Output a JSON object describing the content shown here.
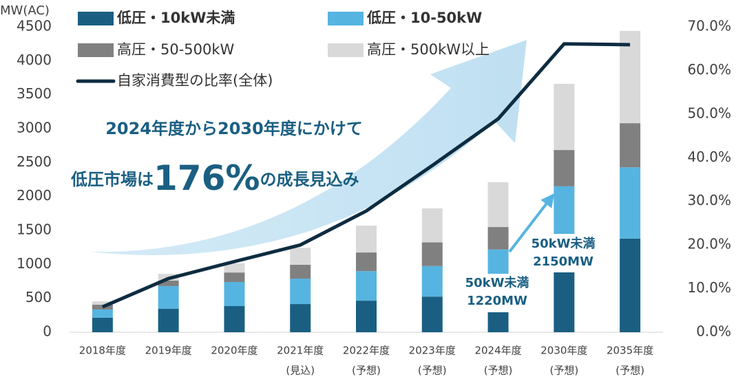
{
  "chart_data": {
    "type": "bar",
    "y_label": "MW(AC)",
    "categories": [
      [
        "2018年度"
      ],
      [
        "2019年度"
      ],
      [
        "2020年度"
      ],
      [
        "2021年度",
        "(見込)"
      ],
      [
        "2022年度",
        "(予想)"
      ],
      [
        "2023年度",
        "(予想)"
      ],
      [
        "2024年度",
        "(予想)"
      ],
      [
        "2030年度",
        "(予想)"
      ],
      [
        "2035年度",
        "(予想)"
      ]
    ],
    "series": [
      {
        "name": "低圧・10kW未満",
        "color": "#1a5f82",
        "values": [
          215,
          345,
          385,
          415,
          465,
          525,
          315,
          910,
          1380
        ]
      },
      {
        "name": "低圧・10-50kW",
        "color": "#56b4e0",
        "values": [
          120,
          335,
          355,
          375,
          435,
          450,
          905,
          1240,
          1050
        ]
      },
      {
        "name": "高圧・50-500kW",
        "color": "#808080",
        "values": [
          70,
          80,
          140,
          205,
          275,
          350,
          330,
          535,
          650
        ]
      },
      {
        "name": "高圧・500kW以上",
        "color": "#d9d9d9",
        "values": [
          50,
          100,
          135,
          250,
          395,
          500,
          660,
          975,
          1360
        ]
      },
      {
        "name": "自家消費型の比率(全体)",
        "color": "#0e2c40",
        "type": "line",
        "axis": "y2",
        "values": [
          5.8,
          12.3,
          16.2,
          20.0,
          27.8,
          38.2,
          48.9,
          66.1,
          65.9
        ]
      }
    ],
    "ylim": [
      0,
      4500
    ],
    "yticks": [
      0,
      500,
      1000,
      1500,
      2000,
      2500,
      3000,
      3500,
      4000,
      4500
    ],
    "y2lim": [
      0,
      70
    ],
    "y2ticks": [
      {
        "value": 0,
        "label": "0.0%"
      },
      {
        "value": 10,
        "label": "10.0%"
      },
      {
        "value": 20,
        "label": "20.0%"
      },
      {
        "value": 30,
        "label": "30.0%"
      },
      {
        "value": 40,
        "label": "40.0%"
      },
      {
        "value": 50,
        "label": "50.0%"
      },
      {
        "value": 60,
        "label": "60.0%"
      },
      {
        "value": 70,
        "label": "70.0%"
      }
    ],
    "annotations": {
      "headline": "2024年度から2030年度にかけて",
      "growth": [
        "低圧市場は",
        "176%",
        "の成長見込み"
      ],
      "callout_2024": [
        "50kW未満",
        "1220MW"
      ],
      "callout_2030": [
        "50kW未満",
        "2150MW"
      ]
    }
  }
}
